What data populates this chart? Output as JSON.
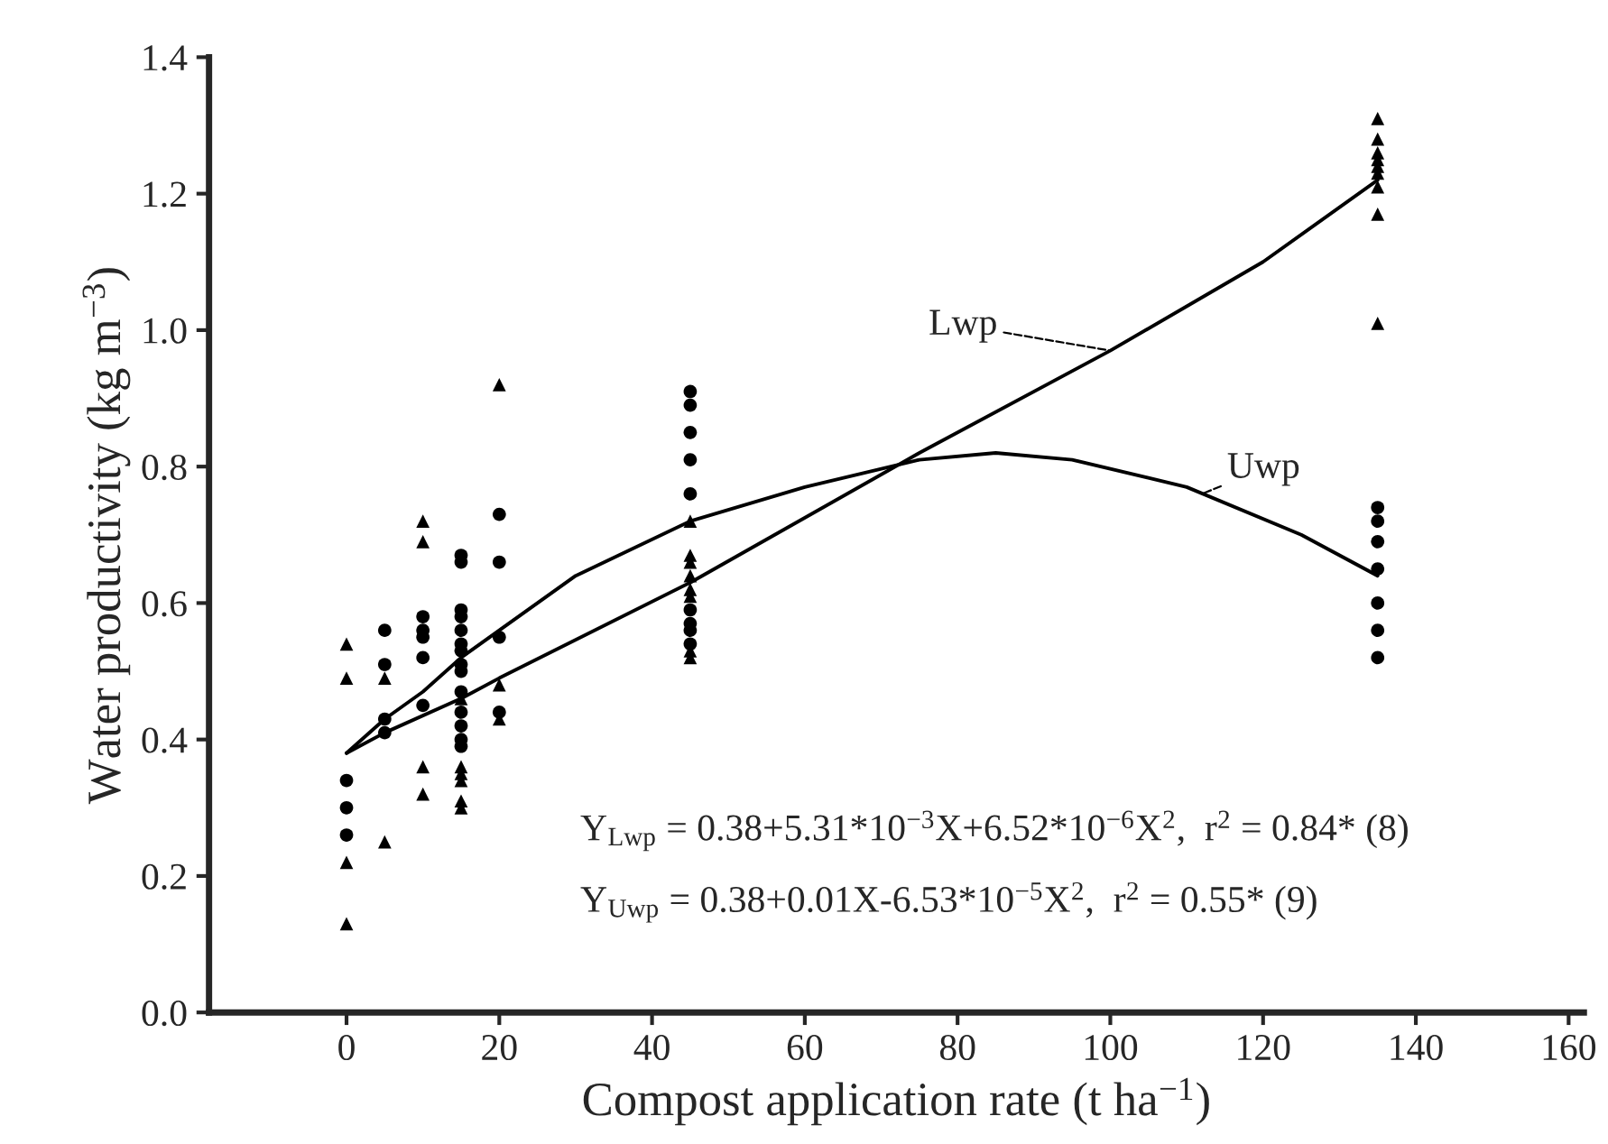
{
  "chart_data": {
    "type": "scatter",
    "xlabel": "Compost application rate (t ha$^{−1}$)",
    "ylabel": "Water productivity (kg m$^{−3}$)",
    "xlim": [
      -18,
      162
    ],
    "xticks": [
      0,
      20,
      40,
      60,
      80,
      100,
      120,
      140,
      160
    ],
    "ylim": [
      0.0,
      1.4
    ],
    "yticks": [
      {
        "value": 0.0,
        "label": "0.0"
      },
      0.2,
      0.4,
      0.6,
      0.8,
      {
        "value": 1.0,
        "label": "1.0"
      },
      1.2,
      1.4
    ],
    "grid": false,
    "legend": false,
    "series": [
      {
        "marker": "triangle",
        "color": "#000000",
        "x": [
          0,
          0,
          0,
          0,
          5,
          5,
          10,
          10,
          10,
          10,
          15,
          15,
          15,
          15,
          15,
          15,
          20,
          20,
          20,
          45,
          45,
          45,
          45,
          45,
          45,
          45,
          45,
          135,
          135,
          135,
          135,
          135,
          135,
          135,
          135,
          135
        ],
        "values": [
          0.54,
          0.49,
          0.22,
          0.13,
          0.49,
          0.25,
          0.72,
          0.69,
          0.36,
          0.32,
          0.46,
          0.36,
          0.35,
          0.34,
          0.31,
          0.3,
          0.92,
          0.48,
          0.43,
          0.72,
          0.67,
          0.66,
          0.64,
          0.62,
          0.61,
          0.53,
          0.52,
          1.31,
          1.28,
          1.26,
          1.25,
          1.24,
          1.23,
          1.21,
          1.17,
          1.01
        ]
      },
      {
        "marker": "circle",
        "color": "#000000",
        "x": [
          0,
          0,
          0,
          5,
          5,
          5,
          5,
          10,
          10,
          10,
          10,
          10,
          15,
          15,
          15,
          15,
          15,
          15,
          15,
          15,
          15,
          15,
          15,
          15,
          15,
          15,
          20,
          20,
          20,
          20,
          45,
          45,
          45,
          45,
          45,
          45,
          45,
          45,
          45,
          135,
          135,
          135,
          135,
          135,
          135,
          135
        ],
        "values": [
          0.34,
          0.3,
          0.26,
          0.56,
          0.51,
          0.43,
          0.41,
          0.58,
          0.56,
          0.55,
          0.52,
          0.45,
          0.67,
          0.66,
          0.59,
          0.58,
          0.56,
          0.54,
          0.53,
          0.51,
          0.5,
          0.47,
          0.42,
          0.4,
          0.39,
          0.44,
          0.73,
          0.66,
          0.55,
          0.44,
          0.91,
          0.89,
          0.85,
          0.81,
          0.76,
          0.59,
          0.57,
          0.56,
          0.54,
          0.74,
          0.72,
          0.69,
          0.65,
          0.6,
          0.56,
          0.52
        ]
      },
      {
        "type": "line",
        "marker": "none",
        "line_style": "solid",
        "color": "#000000",
        "x": [
          0,
          5,
          15,
          20,
          45,
          75,
          100,
          120,
          135
        ],
        "values": [
          0.38,
          0.41,
          0.46,
          0.49,
          0.63,
          0.82,
          0.97,
          1.1,
          1.22
        ]
      },
      {
        "type": "line",
        "marker": "none",
        "line_style": "solid",
        "color": "#000000",
        "x": [
          0,
          5,
          10,
          15,
          20,
          30,
          45,
          60,
          75,
          85,
          95,
          110,
          125,
          135
        ],
        "values": [
          0.38,
          0.43,
          0.47,
          0.52,
          0.56,
          0.64,
          0.72,
          0.77,
          0.81,
          0.82,
          0.81,
          0.77,
          0.7,
          0.64
        ]
      }
    ],
    "annotations": [
      {
        "text": "Lwp",
        "x": 100,
        "y": 0.97
      },
      {
        "text": "Uwp",
        "x": 112,
        "y": 0.76
      },
      "Y$_{Lwp}$ = 0.38+5.31*10$^{−3}$X+6.52*10$^{−6}$X$^{2}$,  r$^{2}$ = 0.84* (8)",
      "Y$_{Uwp}$ = 0.38+0.01X-6.53*10$^{−5}$X$^{2}$,  r$^{2}$ = 0.55* (9)"
    ]
  }
}
